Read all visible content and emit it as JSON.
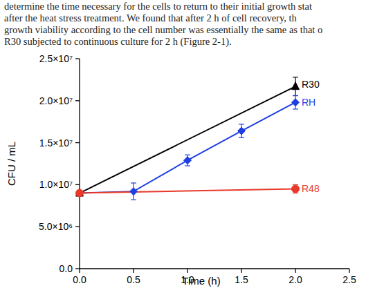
{
  "chart_data": {
    "type": "line",
    "annotations": [
      "determine the time necessary for the cells to return to their initial growth stat",
      "after the heat stress treatment. We found that after 2 h of cell recovery, th",
      "growth viability according to the cell number was essentially the same as that o",
      "R30 subjected to continuous culture for 2 h (Figure 2-1)."
    ],
    "x_label": "Time (h)",
    "y_label": "CFU / mL",
    "xlim": [
      0,
      2.5
    ],
    "xticks": [
      {
        "value": 0,
        "label": "0.0"
      },
      {
        "value": 0.5,
        "label": "0.5"
      },
      {
        "value": 1,
        "label": "1.0"
      },
      {
        "value": 1.5,
        "label": "1.5"
      },
      {
        "value": 2,
        "label": "2.0"
      },
      {
        "value": 2.5,
        "label": "2.5"
      }
    ],
    "ylim": [
      0,
      25000000
    ],
    "yticks": [
      {
        "value": 0,
        "label": "0.0"
      },
      {
        "value": 5000000,
        "label": "5.0×10⁶"
      },
      {
        "value": 10000000,
        "label": "1.0×10⁷"
      },
      {
        "value": 15000000,
        "label": "1.5×10⁷"
      },
      {
        "value": 20000000,
        "label": "2.0×10⁷"
      },
      {
        "value": 25000000,
        "label": "2.5×10⁷"
      }
    ],
    "grid": false,
    "series": [
      {
        "name": "R30",
        "color": "#000000",
        "marker": "triangle",
        "x": [
          0,
          2
        ],
        "values": [
          9000000,
          21700000
        ],
        "errors": [
          300000,
          1100000
        ]
      },
      {
        "name": "RH",
        "color": "#1f3fe0",
        "marker": "diamond",
        "x": [
          0,
          0.5,
          1,
          1.5,
          2
        ],
        "values": [
          9000000,
          9200000,
          12900000,
          16400000,
          19800000
        ],
        "errors": [
          300000,
          1000000,
          650000,
          800000,
          800000
        ]
      },
      {
        "name": "R48",
        "color": "#e8392b",
        "marker": "circle",
        "x": [
          0,
          2
        ],
        "values": [
          9000000,
          9500000
        ],
        "errors": [
          300000,
          500000
        ]
      }
    ]
  }
}
